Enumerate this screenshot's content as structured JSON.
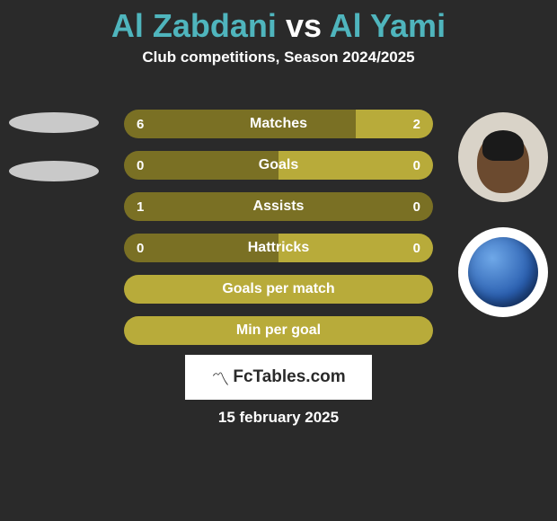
{
  "title": {
    "player1": "Al Zabdani",
    "vs": "vs",
    "player2": "Al Yami",
    "player_color": "#4fb5bd",
    "vs_color": "#ffffff"
  },
  "subtitle": "Club competitions, Season 2024/2025",
  "colors": {
    "bar_dark": "#7a7024",
    "bar_light": "#b8ab3a",
    "solid_light": "#b8ab3a",
    "text": "#ffffff",
    "background": "#2a2a2a",
    "watermark_bg": "#ffffff",
    "watermark_text": "#2a2a2a"
  },
  "bars": [
    {
      "label": "Matches",
      "left": "6",
      "right": "2",
      "left_pct": 75,
      "right_pct": 25,
      "has_values": true
    },
    {
      "label": "Goals",
      "left": "0",
      "right": "0",
      "left_pct": 50,
      "right_pct": 50,
      "has_values": true
    },
    {
      "label": "Assists",
      "left": "1",
      "right": "0",
      "left_pct": 100,
      "right_pct": 0,
      "has_values": true
    },
    {
      "label": "Hattricks",
      "left": "0",
      "right": "0",
      "left_pct": 50,
      "right_pct": 50,
      "has_values": true
    },
    {
      "label": "Goals per match",
      "left": "",
      "right": "",
      "left_pct": 0,
      "right_pct": 0,
      "has_values": false
    },
    {
      "label": "Min per goal",
      "left": "",
      "right": "",
      "left_pct": 0,
      "right_pct": 0,
      "has_values": false
    }
  ],
  "watermark": {
    "icon": "☔",
    "text": "FcTables.com"
  },
  "date": "15 february 2025"
}
